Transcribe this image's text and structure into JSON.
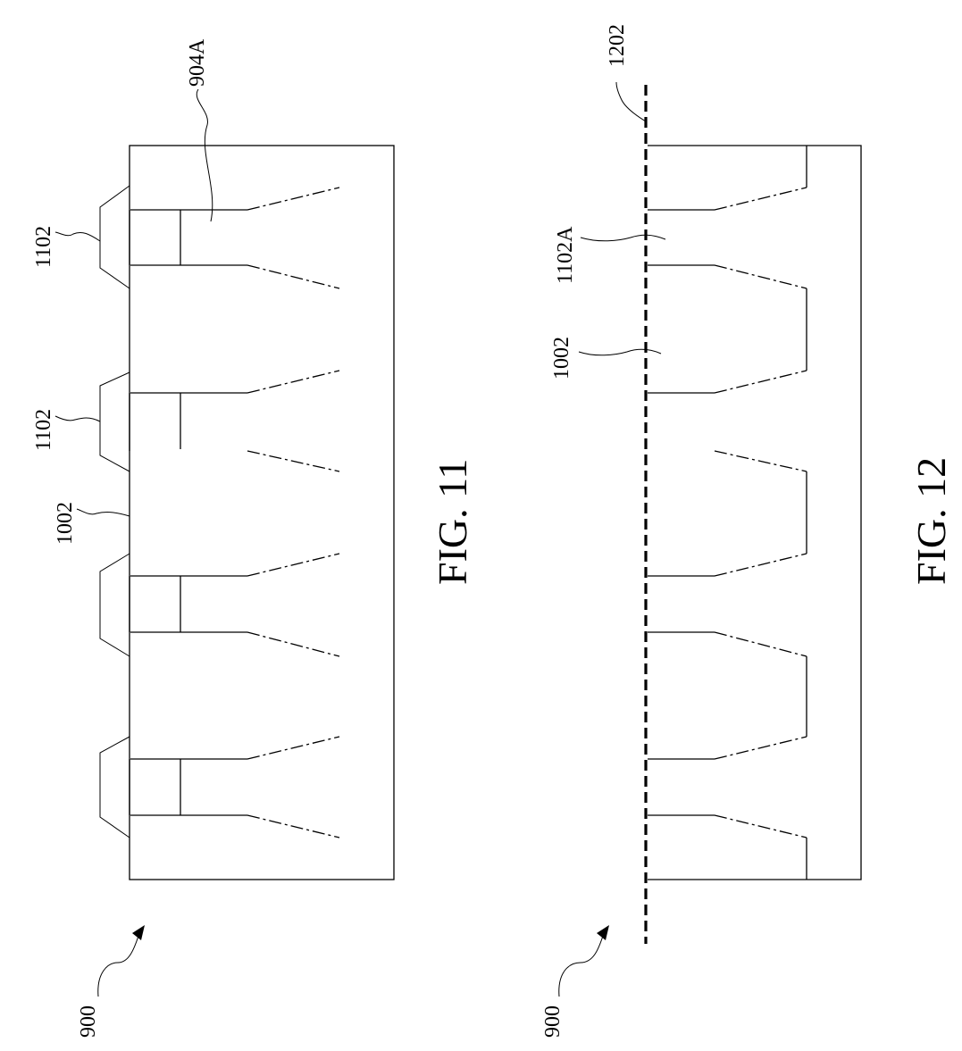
{
  "figures": [
    {
      "caption": "FIG. 11",
      "labels": {
        "ref_900": "900",
        "ref_904a": "904A",
        "ref_1102_a": "1102",
        "ref_1102_b": "1102",
        "ref_1002": "1002"
      }
    },
    {
      "caption": "FIG. 12",
      "labels": {
        "ref_900": "900",
        "ref_1202": "1202",
        "ref_1102a": "1102A",
        "ref_1002": "1002"
      }
    }
  ]
}
